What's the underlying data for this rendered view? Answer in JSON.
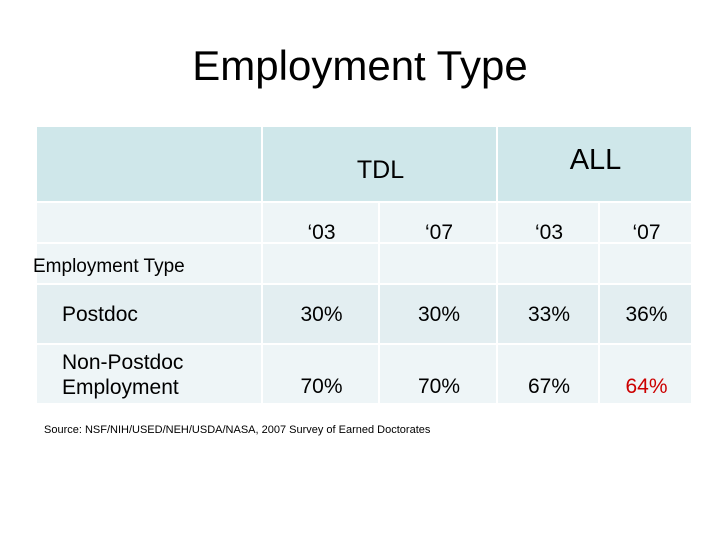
{
  "header": {
    "title": "Employment Type"
  },
  "table": {
    "groups": [
      "TDL",
      "ALL"
    ],
    "years": [
      "‘03",
      "‘07",
      "‘03",
      "‘07"
    ],
    "section_label": "Employment Type",
    "rows": [
      {
        "label": "Postdoc",
        "values": [
          "30%",
          "30%",
          "33%",
          "36%"
        ]
      },
      {
        "label": "Non-Postdoc Employment",
        "values": [
          "70%",
          "70%",
          "67%",
          "64%"
        ]
      }
    ],
    "highlight": {
      "row": 1,
      "col": 3,
      "color": "#cc0000"
    }
  },
  "source": "Source: NSF/NIH/USED/NEH/USDA/NASA, 2007 Survey of Earned Doctorates"
}
